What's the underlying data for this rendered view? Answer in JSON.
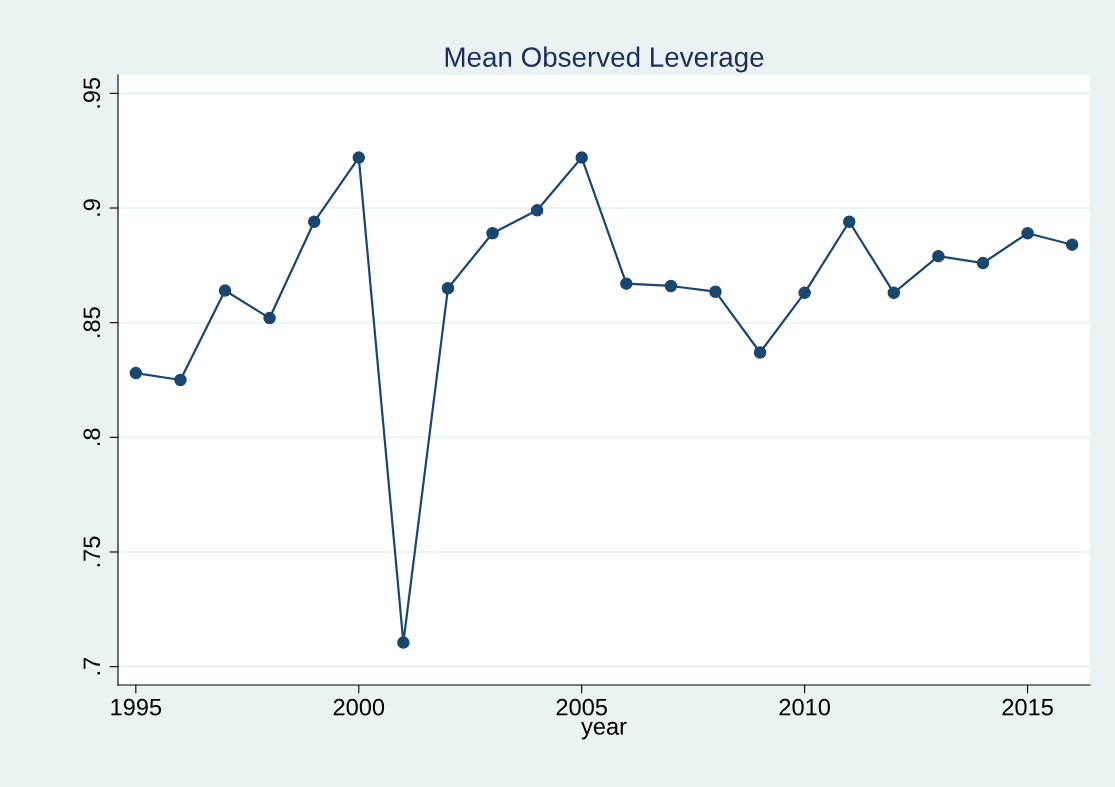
{
  "chart_data": {
    "type": "line",
    "title": "Mean Observed Leverage",
    "xlabel": "year",
    "x": [
      1995,
      1996,
      1997,
      1998,
      1999,
      2000,
      2001,
      2002,
      2003,
      2004,
      2005,
      2006,
      2007,
      2008,
      2009,
      2010,
      2011,
      2012,
      2013,
      2014,
      2015,
      2016
    ],
    "series": [
      {
        "color": "#1a476f",
        "values": [
          0.828,
          0.825,
          0.864,
          0.852,
          0.894,
          0.922,
          0.7105,
          0.865,
          0.889,
          0.899,
          0.922,
          0.867,
          0.866,
          0.8635,
          0.837,
          0.863,
          0.894,
          0.863,
          0.879,
          0.876,
          0.889,
          0.884
        ]
      }
    ],
    "xlim": [
      1994.6,
      2016.4
    ],
    "ylim": [
      0.692,
      0.958
    ],
    "xticks": [
      1995,
      2000,
      2005,
      2010,
      2015
    ],
    "yticks": [
      {
        "value": 0.7,
        "label": ".7"
      },
      {
        "value": 0.75,
        "label": ".75"
      },
      {
        "value": 0.8,
        "label": ".8"
      },
      {
        "value": 0.85,
        "label": ".85"
      },
      {
        "value": 0.9,
        "label": ".9"
      },
      {
        "value": 0.95,
        "label": ".95"
      }
    ],
    "grid": "y",
    "marker": "circle",
    "line_style": "solid"
  }
}
